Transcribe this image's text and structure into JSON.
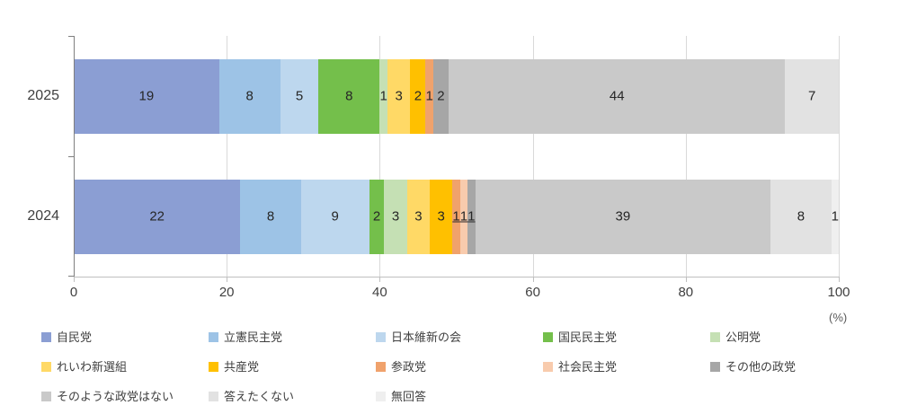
{
  "chart_data": {
    "type": "bar",
    "subtype": "horizontal-stacked-100pct",
    "title": "",
    "unit_label": "(%)",
    "categories": [
      "2025",
      "2024"
    ],
    "xlim": [
      0,
      100
    ],
    "x_ticks": [
      0,
      20,
      40,
      60,
      80,
      100
    ],
    "grid": "vertical-light",
    "legend_position": "bottom",
    "series": [
      {
        "name": "自民党",
        "color": "#8B9ED3",
        "values": [
          19,
          22
        ]
      },
      {
        "name": "立憲民主党",
        "color": "#9DC3E6",
        "values": [
          8,
          8
        ]
      },
      {
        "name": "日本維新の会",
        "color": "#BDD7EE",
        "values": [
          5,
          9
        ]
      },
      {
        "name": "国民民主党",
        "color": "#74BF4B",
        "values": [
          8,
          2
        ]
      },
      {
        "name": "公明党",
        "color": "#C5E0B4",
        "values": [
          1,
          3
        ]
      },
      {
        "name": "れいわ新選組",
        "color": "#FFD966",
        "values": [
          3,
          3
        ]
      },
      {
        "name": "共産党",
        "color": "#FFC000",
        "values": [
          2,
          3
        ]
      },
      {
        "name": "参政党",
        "color": "#F0A26C",
        "values": [
          1,
          1
        ]
      },
      {
        "name": "社会民主党",
        "color": "#F8CBAD",
        "values": [
          0,
          1
        ]
      },
      {
        "name": "その他の政党",
        "color": "#A6A6A6",
        "values": [
          2,
          1
        ]
      },
      {
        "name": "そのような政党はない",
        "color": "#C9C9C9",
        "values": [
          44,
          39
        ]
      },
      {
        "name": "答えたくない",
        "color": "#E2E2E2",
        "values": [
          7,
          8
        ]
      },
      {
        "name": "無回答",
        "color": "#EFEFEF",
        "values": [
          0,
          1
        ]
      }
    ],
    "underlined_label_series_by_category": {
      "2024": [
        "参政党",
        "社会民主党",
        "その他の政党"
      ]
    }
  }
}
